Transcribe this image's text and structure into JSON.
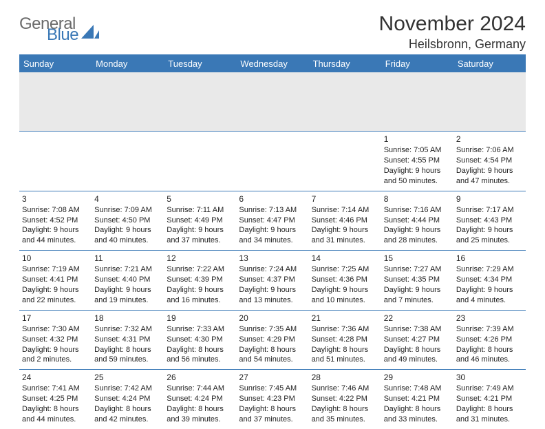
{
  "brand": {
    "part1": "General",
    "part2": "Blue"
  },
  "title": "November 2024",
  "location": "Heilsbronn, Germany",
  "colors": {
    "accent": "#3a78b6",
    "header_text": "#ffffff",
    "body_text": "#222222",
    "blank_row_bg": "#e9e9e9",
    "logo_grey": "#6a6a6a"
  },
  "calendar": {
    "type": "table",
    "columns": [
      "Sunday",
      "Monday",
      "Tuesday",
      "Wednesday",
      "Thursday",
      "Friday",
      "Saturday"
    ],
    "weeks": [
      [
        null,
        null,
        null,
        null,
        null,
        {
          "n": "1",
          "sr": "Sunrise: 7:05 AM",
          "ss": "Sunset: 4:55 PM",
          "d1": "Daylight: 9 hours",
          "d2": "and 50 minutes."
        },
        {
          "n": "2",
          "sr": "Sunrise: 7:06 AM",
          "ss": "Sunset: 4:54 PM",
          "d1": "Daylight: 9 hours",
          "d2": "and 47 minutes."
        }
      ],
      [
        {
          "n": "3",
          "sr": "Sunrise: 7:08 AM",
          "ss": "Sunset: 4:52 PM",
          "d1": "Daylight: 9 hours",
          "d2": "and 44 minutes."
        },
        {
          "n": "4",
          "sr": "Sunrise: 7:09 AM",
          "ss": "Sunset: 4:50 PM",
          "d1": "Daylight: 9 hours",
          "d2": "and 40 minutes."
        },
        {
          "n": "5",
          "sr": "Sunrise: 7:11 AM",
          "ss": "Sunset: 4:49 PM",
          "d1": "Daylight: 9 hours",
          "d2": "and 37 minutes."
        },
        {
          "n": "6",
          "sr": "Sunrise: 7:13 AM",
          "ss": "Sunset: 4:47 PM",
          "d1": "Daylight: 9 hours",
          "d2": "and 34 minutes."
        },
        {
          "n": "7",
          "sr": "Sunrise: 7:14 AM",
          "ss": "Sunset: 4:46 PM",
          "d1": "Daylight: 9 hours",
          "d2": "and 31 minutes."
        },
        {
          "n": "8",
          "sr": "Sunrise: 7:16 AM",
          "ss": "Sunset: 4:44 PM",
          "d1": "Daylight: 9 hours",
          "d2": "and 28 minutes."
        },
        {
          "n": "9",
          "sr": "Sunrise: 7:17 AM",
          "ss": "Sunset: 4:43 PM",
          "d1": "Daylight: 9 hours",
          "d2": "and 25 minutes."
        }
      ],
      [
        {
          "n": "10",
          "sr": "Sunrise: 7:19 AM",
          "ss": "Sunset: 4:41 PM",
          "d1": "Daylight: 9 hours",
          "d2": "and 22 minutes."
        },
        {
          "n": "11",
          "sr": "Sunrise: 7:21 AM",
          "ss": "Sunset: 4:40 PM",
          "d1": "Daylight: 9 hours",
          "d2": "and 19 minutes."
        },
        {
          "n": "12",
          "sr": "Sunrise: 7:22 AM",
          "ss": "Sunset: 4:39 PM",
          "d1": "Daylight: 9 hours",
          "d2": "and 16 minutes."
        },
        {
          "n": "13",
          "sr": "Sunrise: 7:24 AM",
          "ss": "Sunset: 4:37 PM",
          "d1": "Daylight: 9 hours",
          "d2": "and 13 minutes."
        },
        {
          "n": "14",
          "sr": "Sunrise: 7:25 AM",
          "ss": "Sunset: 4:36 PM",
          "d1": "Daylight: 9 hours",
          "d2": "and 10 minutes."
        },
        {
          "n": "15",
          "sr": "Sunrise: 7:27 AM",
          "ss": "Sunset: 4:35 PM",
          "d1": "Daylight: 9 hours",
          "d2": "and 7 minutes."
        },
        {
          "n": "16",
          "sr": "Sunrise: 7:29 AM",
          "ss": "Sunset: 4:34 PM",
          "d1": "Daylight: 9 hours",
          "d2": "and 4 minutes."
        }
      ],
      [
        {
          "n": "17",
          "sr": "Sunrise: 7:30 AM",
          "ss": "Sunset: 4:32 PM",
          "d1": "Daylight: 9 hours",
          "d2": "and 2 minutes."
        },
        {
          "n": "18",
          "sr": "Sunrise: 7:32 AM",
          "ss": "Sunset: 4:31 PM",
          "d1": "Daylight: 8 hours",
          "d2": "and 59 minutes."
        },
        {
          "n": "19",
          "sr": "Sunrise: 7:33 AM",
          "ss": "Sunset: 4:30 PM",
          "d1": "Daylight: 8 hours",
          "d2": "and 56 minutes."
        },
        {
          "n": "20",
          "sr": "Sunrise: 7:35 AM",
          "ss": "Sunset: 4:29 PM",
          "d1": "Daylight: 8 hours",
          "d2": "and 54 minutes."
        },
        {
          "n": "21",
          "sr": "Sunrise: 7:36 AM",
          "ss": "Sunset: 4:28 PM",
          "d1": "Daylight: 8 hours",
          "d2": "and 51 minutes."
        },
        {
          "n": "22",
          "sr": "Sunrise: 7:38 AM",
          "ss": "Sunset: 4:27 PM",
          "d1": "Daylight: 8 hours",
          "d2": "and 49 minutes."
        },
        {
          "n": "23",
          "sr": "Sunrise: 7:39 AM",
          "ss": "Sunset: 4:26 PM",
          "d1": "Daylight: 8 hours",
          "d2": "and 46 minutes."
        }
      ],
      [
        {
          "n": "24",
          "sr": "Sunrise: 7:41 AM",
          "ss": "Sunset: 4:25 PM",
          "d1": "Daylight: 8 hours",
          "d2": "and 44 minutes."
        },
        {
          "n": "25",
          "sr": "Sunrise: 7:42 AM",
          "ss": "Sunset: 4:24 PM",
          "d1": "Daylight: 8 hours",
          "d2": "and 42 minutes."
        },
        {
          "n": "26",
          "sr": "Sunrise: 7:44 AM",
          "ss": "Sunset: 4:24 PM",
          "d1": "Daylight: 8 hours",
          "d2": "and 39 minutes."
        },
        {
          "n": "27",
          "sr": "Sunrise: 7:45 AM",
          "ss": "Sunset: 4:23 PM",
          "d1": "Daylight: 8 hours",
          "d2": "and 37 minutes."
        },
        {
          "n": "28",
          "sr": "Sunrise: 7:46 AM",
          "ss": "Sunset: 4:22 PM",
          "d1": "Daylight: 8 hours",
          "d2": "and 35 minutes."
        },
        {
          "n": "29",
          "sr": "Sunrise: 7:48 AM",
          "ss": "Sunset: 4:21 PM",
          "d1": "Daylight: 8 hours",
          "d2": "and 33 minutes."
        },
        {
          "n": "30",
          "sr": "Sunrise: 7:49 AM",
          "ss": "Sunset: 4:21 PM",
          "d1": "Daylight: 8 hours",
          "d2": "and 31 minutes."
        }
      ]
    ]
  }
}
